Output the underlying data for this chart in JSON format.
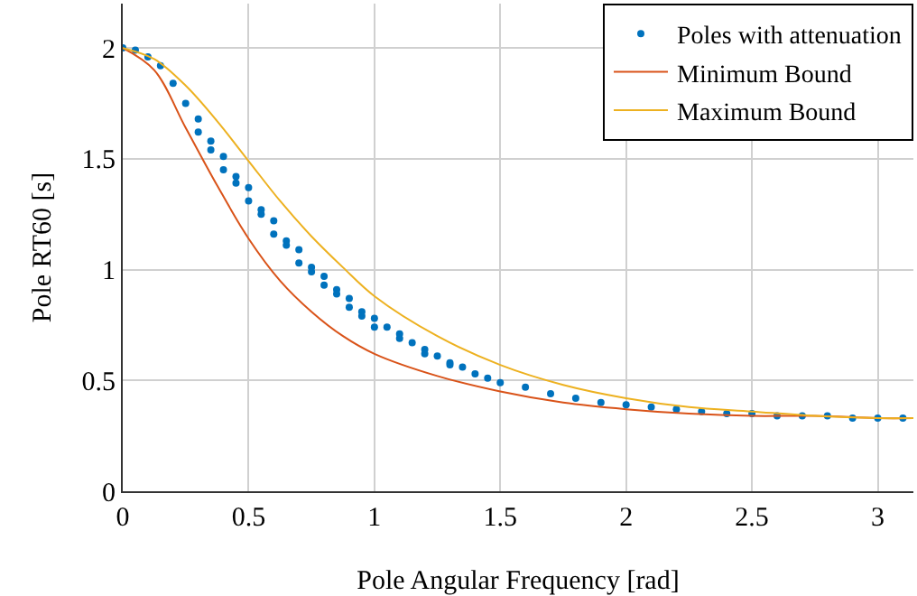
{
  "chart_data": {
    "type": "scatter",
    "xlabel": "Pole Angular Frequency [rad]",
    "ylabel": "Pole RT60 [s]",
    "xlim": [
      0,
      3.1416
    ],
    "ylim": [
      0,
      2.2
    ],
    "xticks": [
      0,
      0.5,
      1,
      1.5,
      2,
      2.5,
      3
    ],
    "yticks": [
      0,
      0.5,
      1,
      1.5,
      2
    ],
    "grid": true,
    "legend": "top right",
    "series": [
      {
        "name": "Poles with attenuation",
        "marker": "circle",
        "color": "#0072bd",
        "x": [
          0,
          0.05,
          0.1,
          0.15,
          0.2,
          0.25,
          0.3,
          0.35,
          0.4,
          0.45,
          0.5,
          0.55,
          0.6,
          0.65,
          0.7,
          0.75,
          0.8,
          0.85,
          0.9,
          0.95,
          1.0,
          1.05,
          1.1,
          1.15,
          1.2,
          1.25,
          1.3,
          1.35,
          1.4,
          1.45,
          1.5,
          1.6,
          1.7,
          1.8,
          1.9,
          2.0,
          2.1,
          2.2,
          2.3,
          2.4,
          2.5,
          2.6,
          2.7,
          2.8,
          2.9,
          3.0,
          3.1,
          0.3,
          0.35,
          0.4,
          0.45,
          0.5,
          0.55,
          0.6,
          0.65,
          0.7,
          0.75,
          0.8,
          0.85,
          0.9,
          0.95,
          1.0,
          1.1,
          1.2,
          1.3
        ],
        "values": [
          2.0,
          1.99,
          1.96,
          1.92,
          1.84,
          1.75,
          1.68,
          1.58,
          1.51,
          1.42,
          1.37,
          1.27,
          1.22,
          1.13,
          1.09,
          1.01,
          0.97,
          0.91,
          0.87,
          0.81,
          0.78,
          0.74,
          0.71,
          0.67,
          0.64,
          0.61,
          0.58,
          0.56,
          0.53,
          0.51,
          0.49,
          0.47,
          0.44,
          0.42,
          0.4,
          0.39,
          0.38,
          0.37,
          0.36,
          0.35,
          0.35,
          0.34,
          0.34,
          0.34,
          0.33,
          0.33,
          0.33,
          1.62,
          1.54,
          1.45,
          1.39,
          1.31,
          1.25,
          1.16,
          1.11,
          1.03,
          0.99,
          0.93,
          0.89,
          0.83,
          0.79,
          0.74,
          0.69,
          0.62,
          0.57
        ]
      },
      {
        "name": "Minimum Bound",
        "type": "line",
        "color": "#d95319",
        "x": [
          0,
          0.125,
          0.25,
          0.375,
          0.5,
          0.625,
          0.75,
          0.875,
          1,
          1.25,
          1.5,
          1.75,
          2,
          2.25,
          2.5,
          2.75,
          3,
          3.1416
        ],
        "values": [
          2,
          1.9,
          1.64,
          1.38,
          1.14,
          0.95,
          0.81,
          0.7,
          0.62,
          0.52,
          0.45,
          0.4,
          0.37,
          0.35,
          0.34,
          0.34,
          0.33,
          0.33
        ]
      },
      {
        "name": "Maximum Bound",
        "type": "line",
        "color": "#edb120",
        "x": [
          0,
          0.125,
          0.25,
          0.375,
          0.5,
          0.625,
          0.75,
          0.875,
          1,
          1.25,
          1.5,
          1.75,
          2,
          2.25,
          2.5,
          2.75,
          3,
          3.1416
        ],
        "values": [
          2,
          1.95,
          1.83,
          1.67,
          1.49,
          1.31,
          1.15,
          1.01,
          0.88,
          0.7,
          0.57,
          0.48,
          0.42,
          0.38,
          0.36,
          0.34,
          0.33,
          0.33
        ]
      }
    ]
  }
}
